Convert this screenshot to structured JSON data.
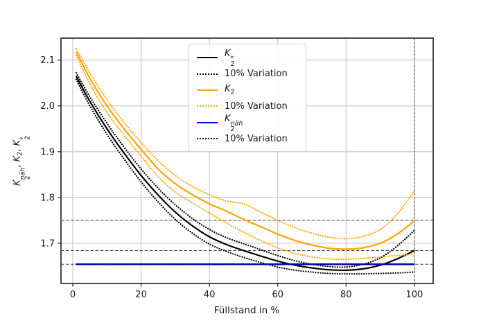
{
  "chart_data": {
    "type": "line",
    "title": "",
    "xlabel": "Füllstand in %",
    "ylabel": "K2^näh, K2, K2^*",
    "xlim": [
      -3.45,
      105.5
    ],
    "ylim": [
      1.612,
      2.148
    ],
    "xticks": [
      0,
      20,
      40,
      60,
      80,
      100
    ],
    "ytick_labels": [
      "1.7",
      "1.8",
      "1.9",
      "2.0",
      "2.1"
    ],
    "yticks": [
      1.7,
      1.8,
      1.9,
      2.0,
      2.1
    ],
    "grid": true,
    "legend_position": "upper center",
    "series": [
      {
        "name": "K2* optimal",
        "color": "#000000",
        "style": "solid",
        "width": 2.2,
        "points": [
          [
            1,
            2.065
          ],
          [
            5,
            2.01
          ],
          [
            10,
            1.95
          ],
          [
            15,
            1.897
          ],
          [
            20,
            1.848
          ],
          [
            25,
            1.805
          ],
          [
            30,
            1.768
          ],
          [
            35,
            1.738
          ],
          [
            40,
            1.714
          ],
          [
            45,
            1.697
          ],
          [
            50,
            1.684
          ],
          [
            55,
            1.672
          ],
          [
            60,
            1.661
          ],
          [
            65,
            1.652
          ],
          [
            70,
            1.646
          ],
          [
            75,
            1.642
          ],
          [
            80,
            1.641
          ],
          [
            85,
            1.644
          ],
          [
            90,
            1.652
          ],
          [
            95,
            1.666
          ],
          [
            100,
            1.684
          ]
        ]
      },
      {
        "name": "K2* 10% Variation upper",
        "color": "#000000",
        "style": "dotted",
        "width": 2.2,
        "points": [
          [
            1,
            2.072
          ],
          [
            5,
            2.02
          ],
          [
            10,
            1.962
          ],
          [
            15,
            1.91
          ],
          [
            20,
            1.862
          ],
          [
            25,
            1.82
          ],
          [
            30,
            1.784
          ],
          [
            35,
            1.754
          ],
          [
            40,
            1.73
          ],
          [
            45,
            1.712
          ],
          [
            50,
            1.699
          ],
          [
            55,
            1.686
          ],
          [
            60,
            1.673
          ],
          [
            65,
            1.662
          ],
          [
            70,
            1.654
          ],
          [
            75,
            1.649
          ],
          [
            80,
            1.648
          ],
          [
            85,
            1.654
          ],
          [
            90,
            1.668
          ],
          [
            95,
            1.694
          ],
          [
            100,
            1.728
          ]
        ]
      },
      {
        "name": "K2* 10% Variation lower",
        "color": "#000000",
        "style": "dotted",
        "width": 2.2,
        "points": [
          [
            1,
            2.058
          ],
          [
            5,
            2.0
          ],
          [
            10,
            1.938
          ],
          [
            15,
            1.884
          ],
          [
            20,
            1.834
          ],
          [
            25,
            1.79
          ],
          [
            30,
            1.752
          ],
          [
            35,
            1.722
          ],
          [
            40,
            1.698
          ],
          [
            45,
            1.682
          ],
          [
            50,
            1.669
          ],
          [
            55,
            1.658
          ],
          [
            60,
            1.648
          ],
          [
            65,
            1.641
          ],
          [
            70,
            1.637
          ],
          [
            75,
            1.634
          ],
          [
            80,
            1.633
          ],
          [
            85,
            1.633
          ],
          [
            90,
            1.634
          ],
          [
            95,
            1.635
          ],
          [
            100,
            1.637
          ]
        ]
      },
      {
        "name": "K2",
        "color": "#ffa500",
        "style": "solid",
        "width": 2.2,
        "points": [
          [
            1,
            2.118
          ],
          [
            5,
            2.06
          ],
          [
            10,
            2.0
          ],
          [
            15,
            1.95
          ],
          [
            20,
            1.905
          ],
          [
            25,
            1.862
          ],
          [
            30,
            1.83
          ],
          [
            35,
            1.806
          ],
          [
            40,
            1.786
          ],
          [
            45,
            1.77
          ],
          [
            50,
            1.752
          ],
          [
            55,
            1.736
          ],
          [
            60,
            1.72
          ],
          [
            65,
            1.706
          ],
          [
            70,
            1.696
          ],
          [
            75,
            1.689
          ],
          [
            80,
            1.687
          ],
          [
            85,
            1.69
          ],
          [
            90,
            1.7
          ],
          [
            95,
            1.72
          ],
          [
            100,
            1.749
          ]
        ]
      },
      {
        "name": "K2 10% Variation upper",
        "color": "#ffa500",
        "style": "dotted",
        "width": 2.2,
        "points": [
          [
            1,
            2.125
          ],
          [
            5,
            2.072
          ],
          [
            10,
            2.014
          ],
          [
            15,
            1.964
          ],
          [
            20,
            1.92
          ],
          [
            25,
            1.88
          ],
          [
            30,
            1.848
          ],
          [
            35,
            1.824
          ],
          [
            40,
            1.806
          ],
          [
            45,
            1.792
          ],
          [
            50,
            1.786
          ],
          [
            55,
            1.768
          ],
          [
            60,
            1.75
          ],
          [
            65,
            1.734
          ],
          [
            70,
            1.722
          ],
          [
            75,
            1.713
          ],
          [
            80,
            1.71
          ],
          [
            85,
            1.715
          ],
          [
            90,
            1.73
          ],
          [
            95,
            1.764
          ],
          [
            100,
            1.814
          ]
        ]
      },
      {
        "name": "K2 10% Variation lower",
        "color": "#ffa500",
        "style": "dotted",
        "width": 2.2,
        "points": [
          [
            1,
            2.11
          ],
          [
            5,
            2.048
          ],
          [
            10,
            1.986
          ],
          [
            15,
            1.936
          ],
          [
            20,
            1.89
          ],
          [
            25,
            1.845
          ],
          [
            30,
            1.812
          ],
          [
            35,
            1.788
          ],
          [
            40,
            1.766
          ],
          [
            45,
            1.744
          ],
          [
            50,
            1.724
          ],
          [
            55,
            1.706
          ],
          [
            60,
            1.69
          ],
          [
            65,
            1.678
          ],
          [
            70,
            1.67
          ],
          [
            75,
            1.666
          ],
          [
            80,
            1.665
          ],
          [
            85,
            1.667
          ],
          [
            90,
            1.67
          ],
          [
            95,
            1.673
          ],
          [
            100,
            1.676
          ]
        ]
      },
      {
        "name": "K2 näh",
        "color": "#0000dd",
        "style": "solid",
        "width": 2.6,
        "points": [
          [
            1,
            1.654
          ],
          [
            100,
            1.654
          ]
        ]
      },
      {
        "name": "K2 näh 10% Variation",
        "color": "#000099",
        "style": "dotted",
        "width": 2.2,
        "points": [
          [
            1,
            1.654
          ],
          [
            100,
            1.654
          ]
        ]
      }
    ],
    "reference_lines": {
      "horizontal": [
        1.75,
        1.684,
        1.654
      ],
      "vertical": [
        100
      ]
    }
  },
  "colors": {
    "grid": "#cccccc",
    "ref_dash": "#3f3f3f",
    "spine": "#333333"
  },
  "ylabel_parts": {
    "k1": "K",
    "sup1": "näh",
    "sub1": "2",
    "sep1": ", ",
    "k2": "K",
    "sub2": "2",
    "sep2": ", ",
    "k3": "K",
    "sup3": "*",
    "sub3": "2"
  },
  "legend": {
    "items": [
      {
        "base": "K",
        "sup": "*",
        "sub": "2",
        "line": "solid",
        "color": "#000000"
      },
      {
        "label": "10% Variation",
        "line": "dotted",
        "color": "#000000"
      },
      {
        "base": "K",
        "sub": "2",
        "line": "solid",
        "color": "#ffa500"
      },
      {
        "label": "10% Variation",
        "line": "dotted",
        "color": "#ffa500"
      },
      {
        "base": "K",
        "sup": "näh",
        "sub": "2",
        "line": "solid",
        "color": "#0000dd"
      },
      {
        "label": "10% Variation",
        "line": "dotted",
        "color": "#0000bb"
      }
    ]
  }
}
